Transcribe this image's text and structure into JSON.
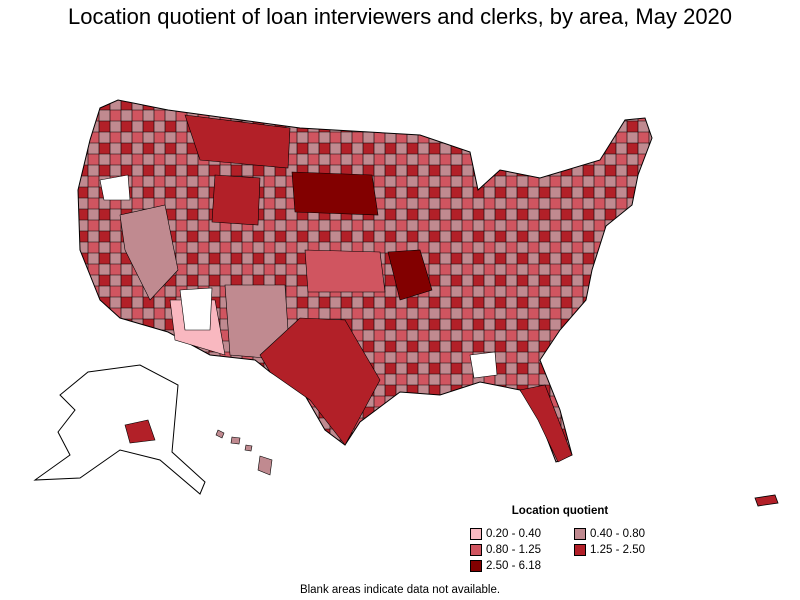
{
  "title": "Location quotient of loan interviewers and clerks, by area, May 2020",
  "legend": {
    "title": "Location quotient",
    "items": [
      {
        "label": "0.20 - 0.40",
        "color": "#f9b8c0"
      },
      {
        "label": "0.40 - 0.80",
        "color": "#c08a90"
      },
      {
        "label": "0.80 - 1.25",
        "color": "#d05560"
      },
      {
        "label": "1.25 - 2.50",
        "color": "#b22028"
      },
      {
        "label": "2.50 - 6.18",
        "color": "#820000"
      }
    ]
  },
  "footnote": "Blank areas indicate data not available.",
  "colors": {
    "outline": "#000000",
    "blank": "#ffffff"
  }
}
